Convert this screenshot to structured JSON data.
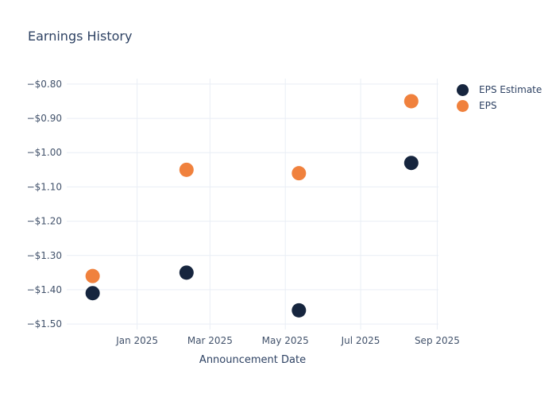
{
  "header": {
    "title": "Earnings History"
  },
  "colors": {
    "background": "#ffffff",
    "navy": "#16253e",
    "orange": "#f0813d",
    "grid": "#e9eef5",
    "title_text": "#2e4263",
    "tick_text": "#42526b"
  },
  "chart_data": {
    "type": "scatter",
    "title": "Earnings History",
    "xlabel": "Announcement Date",
    "ylabel": "",
    "grid": true,
    "legend_position": "top-right-outside",
    "xlim": [
      "2024-11-05",
      "2025-09-02"
    ],
    "ylim": [
      -1.516,
      -0.784
    ],
    "x_ticks": [
      {
        "date": "2025-01-01",
        "label": "Jan 2025"
      },
      {
        "date": "2025-03-01",
        "label": "Mar 2025"
      },
      {
        "date": "2025-05-01",
        "label": "May 2025"
      },
      {
        "date": "2025-07-01",
        "label": "Jul 2025"
      },
      {
        "date": "2025-09-01",
        "label": "Sep 2025"
      }
    ],
    "y_ticks": [
      {
        "value": -0.8,
        "label": "−$0.80"
      },
      {
        "value": -0.9,
        "label": "−$0.90"
      },
      {
        "value": -1.0,
        "label": "−$1.00"
      },
      {
        "value": -1.1,
        "label": "−$1.10"
      },
      {
        "value": -1.2,
        "label": "−$1.20"
      },
      {
        "value": -1.3,
        "label": "−$1.30"
      },
      {
        "value": -1.4,
        "label": "−$1.40"
      },
      {
        "value": -1.5,
        "label": "−$1.50"
      }
    ],
    "marker_radius": 9,
    "series": [
      {
        "name": "EPS Estimate",
        "color": "#16253e",
        "points": [
          {
            "date": "2024-11-26",
            "value": -1.41
          },
          {
            "date": "2025-02-10",
            "value": -1.35
          },
          {
            "date": "2025-05-12",
            "value": -1.46
          },
          {
            "date": "2025-08-11",
            "value": -1.03
          }
        ]
      },
      {
        "name": "EPS",
        "color": "#f0813d",
        "points": [
          {
            "date": "2024-11-26",
            "value": -1.36
          },
          {
            "date": "2025-02-10",
            "value": -1.05
          },
          {
            "date": "2025-05-12",
            "value": -1.06
          },
          {
            "date": "2025-08-11",
            "value": -0.85
          }
        ]
      }
    ]
  }
}
